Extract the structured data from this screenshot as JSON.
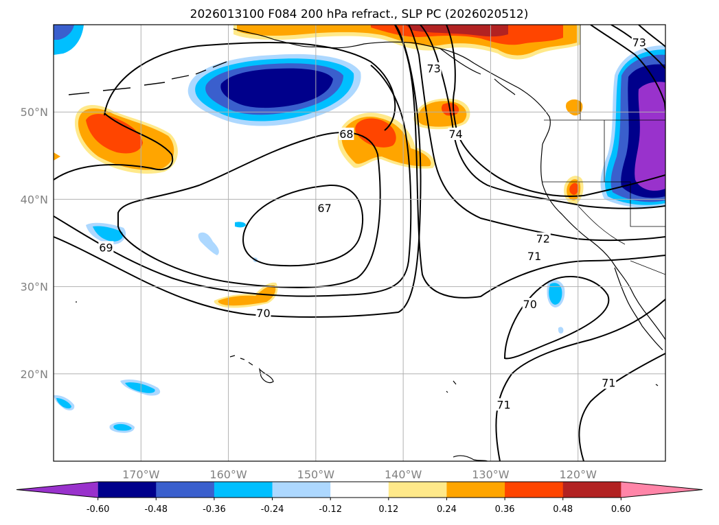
{
  "chart_data": {
    "type": "contour-map",
    "title": "2026013100 F084 200 hPa refract., SLP PC (2026020512)",
    "x_ticks": [
      "170°W",
      "160°W",
      "150°W",
      "140°W",
      "130°W",
      "120°W"
    ],
    "y_ticks": [
      "50°N",
      "40°N",
      "30°N",
      "20°N"
    ],
    "x_tick_values": [
      -170,
      -160,
      -150,
      -140,
      -130,
      -120
    ],
    "y_tick_values": [
      50,
      40,
      30,
      20
    ],
    "lon_range": [
      -180,
      -110
    ],
    "lat_range": [
      10,
      60
    ],
    "grid": true,
    "colorbar": {
      "orientation": "horizontal",
      "extend": "both",
      "levels": [
        "-0.60",
        "-0.48",
        "-0.36",
        "-0.24",
        "-0.12",
        "0.12",
        "0.24",
        "0.36",
        "0.48",
        "0.60"
      ],
      "colors": [
        "#9932CC",
        "#00008B",
        "#3A5FCD",
        "#00BFFF",
        "#ADD8FF",
        "#FFFFFF",
        "#FFE98A",
        "#FFA500",
        "#FF4500",
        "#B22222",
        "#FF85A8"
      ]
    },
    "contour_labels": [
      {
        "text": "67",
        "lon": -149,
        "lat": 39
      },
      {
        "text": "68",
        "lon": -146.5,
        "lat": 47.5
      },
      {
        "text": "69",
        "lon": -174,
        "lat": 34.5
      },
      {
        "text": "70",
        "lon": -156,
        "lat": 27
      },
      {
        "text": "70",
        "lon": -125.5,
        "lat": 28
      },
      {
        "text": "71",
        "lon": -125,
        "lat": 33.5
      },
      {
        "text": "71",
        "lon": -128.5,
        "lat": 16.5
      },
      {
        "text": "71",
        "lon": -116.5,
        "lat": 19
      },
      {
        "text": "72",
        "lon": -124,
        "lat": 35.5
      },
      {
        "text": "73",
        "lon": -136.5,
        "lat": 55
      },
      {
        "text": "73",
        "lon": -113,
        "lat": 58
      },
      {
        "text": "74",
        "lon": -134,
        "lat": 47.5
      }
    ]
  }
}
